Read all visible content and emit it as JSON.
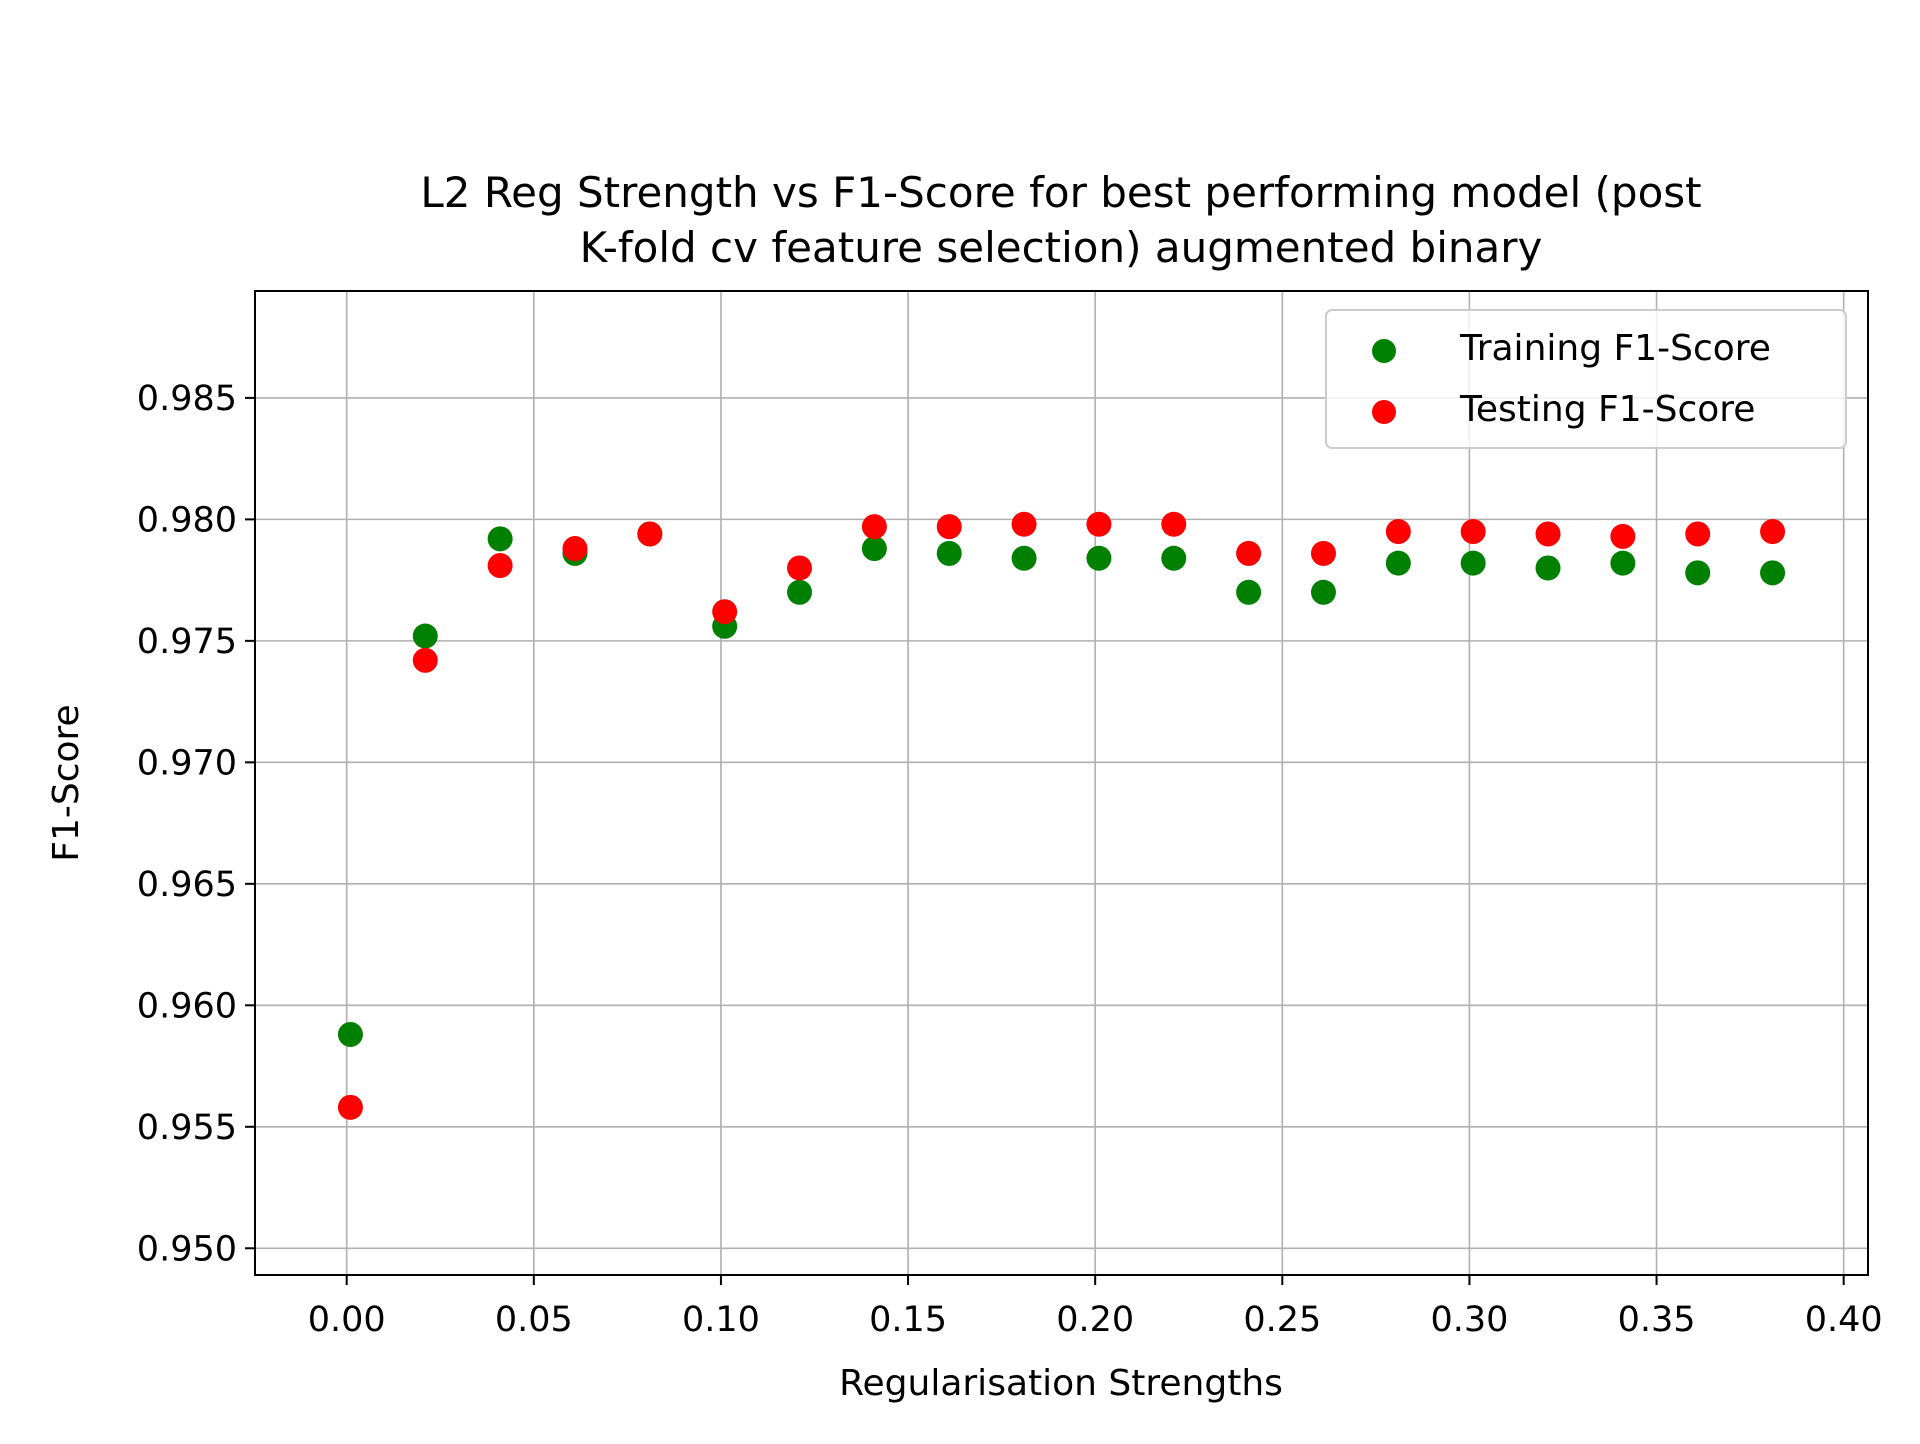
{
  "chart_data": {
    "type": "scatter",
    "title_lines": [
      "L2 Reg Strength vs F1-Score for best performing model (post",
      "K-fold cv feature selection) augmented binary"
    ],
    "xlabel": "Regularisation Strengths",
    "ylabel": "F1-Score",
    "xlim": [
      -0.0245,
      0.4065
    ],
    "ylim": [
      0.9489,
      0.9894
    ],
    "x_ticks": [
      0.0,
      0.05,
      0.1,
      0.15,
      0.2,
      0.25,
      0.3,
      0.35,
      0.4
    ],
    "x_tick_labels": [
      "0.00",
      "0.05",
      "0.10",
      "0.15",
      "0.20",
      "0.25",
      "0.30",
      "0.35",
      "0.40"
    ],
    "y_ticks": [
      0.95,
      0.955,
      0.96,
      0.965,
      0.97,
      0.975,
      0.98,
      0.985
    ],
    "y_tick_labels": [
      "0.950",
      "0.955",
      "0.960",
      "0.965",
      "0.970",
      "0.975",
      "0.980",
      "0.985"
    ],
    "grid": true,
    "legend_position": "top-right",
    "x": [
      0.001,
      0.021,
      0.041,
      0.061,
      0.081,
      0.101,
      0.121,
      0.141,
      0.161,
      0.181,
      0.201,
      0.221,
      0.241,
      0.261,
      0.281,
      0.301,
      0.321,
      0.341,
      0.361,
      0.381
    ],
    "series": [
      {
        "name": "Training F1-Score",
        "color": "#008000",
        "values": [
          0.9588,
          0.9752,
          0.9792,
          0.9786,
          0.9794,
          0.9756,
          0.977,
          0.9788,
          0.9786,
          0.9784,
          0.9784,
          0.9784,
          0.977,
          0.977,
          0.9782,
          0.9782,
          0.978,
          0.9782,
          0.9778,
          0.9778
        ]
      },
      {
        "name": "Testing F1-Score",
        "color": "#ff0000",
        "values": [
          0.9558,
          0.9742,
          0.9781,
          0.9788,
          0.9794,
          0.9762,
          0.978,
          0.9797,
          0.9797,
          0.9798,
          0.9798,
          0.9798,
          0.9786,
          0.9786,
          0.9795,
          0.9795,
          0.9794,
          0.9793,
          0.9794,
          0.9795
        ]
      }
    ]
  }
}
